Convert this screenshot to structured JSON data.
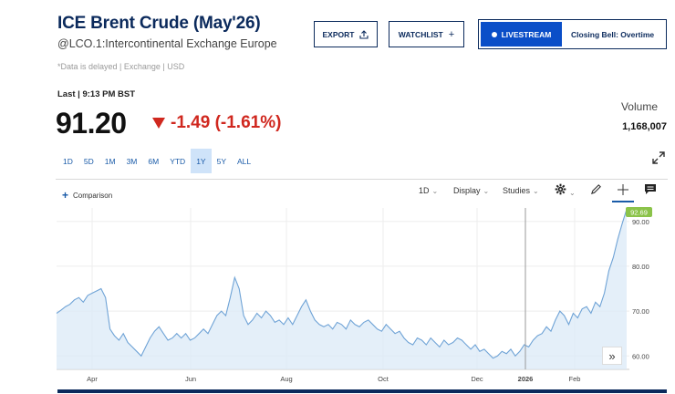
{
  "quote": {
    "title": "ICE Brent Crude (May'26)",
    "subtitle": "@LCO.1:Intercontinental Exchange Europe",
    "delayed_note": "*Data is delayed | Exchange | USD",
    "last_time": "Last | 9:13 PM BST",
    "price": "91.20",
    "change": "-1.49 (-1.61%)",
    "volume_label": "Volume",
    "volume_value": "1,168,007"
  },
  "header_buttons": {
    "export_label": "EXPORT",
    "watchlist_label": "WATCHLIST",
    "livestream_label": "LIVESTREAM",
    "live_show": "Closing Bell: Overtime"
  },
  "ranges": [
    "1D",
    "5D",
    "1M",
    "3M",
    "6M",
    "YTD",
    "1Y",
    "5Y",
    "ALL"
  ],
  "active_range": "1Y",
  "toolbar": {
    "comparison_label": "Comparison",
    "interval": "1D",
    "display": "Display",
    "studies": "Studies"
  },
  "colors": {
    "brand": "#0b2a5c",
    "negative": "#d0281f",
    "line": "#6fa3d6",
    "fill": "#dbe9f7",
    "badge": "#8bc34a"
  },
  "chart_data": {
    "type": "area",
    "x_labels": [
      "Apr",
      "Jun",
      "Aug",
      "Oct",
      "Dec",
      "2026",
      "Feb"
    ],
    "y_ticks": [
      "90.00",
      "80.00",
      "70.00",
      "60.00"
    ],
    "ylim": [
      57,
      93
    ],
    "last_value_badge": "92.69",
    "series": [
      {
        "values": [
          69.5,
          70.2,
          71.0,
          71.5,
          72.5,
          73.0,
          72.0,
          73.5,
          74.0,
          74.5,
          75.0,
          73.0,
          66.0,
          64.5,
          63.5,
          65.0,
          63.0,
          62.0,
          61.0,
          60.0,
          62.0,
          64.0,
          65.5,
          66.5,
          65.0,
          63.5,
          64.0,
          65.0,
          64.0,
          65.0,
          63.5,
          64.0,
          65.0,
          66.0,
          65.0,
          67.0,
          69.0,
          70.0,
          69.0,
          73.0,
          77.5,
          75.0,
          69.0,
          67.0,
          68.0,
          69.5,
          68.5,
          70.0,
          69.0,
          67.5,
          68.0,
          67.0,
          68.5,
          67.0,
          69.0,
          71.0,
          72.5,
          70.0,
          68.0,
          67.0,
          66.5,
          67.0,
          66.0,
          67.5,
          67.0,
          66.0,
          68.0,
          67.0,
          66.5,
          67.5,
          68.0,
          67.0,
          66.0,
          65.5,
          67.0,
          66.0,
          65.0,
          65.5,
          64.0,
          63.0,
          62.5,
          64.0,
          63.5,
          62.5,
          64.0,
          63.0,
          62.0,
          63.5,
          62.5,
          63.0,
          64.0,
          63.5,
          62.5,
          61.5,
          62.5,
          61.0,
          61.5,
          60.5,
          59.5,
          60.0,
          61.0,
          60.5,
          61.5,
          60.0,
          61.0,
          62.5,
          62.0,
          63.5,
          64.5,
          65.0,
          66.5,
          65.5,
          68.0,
          70.0,
          69.0,
          67.0,
          69.5,
          68.5,
          70.5,
          71.0,
          69.5,
          72.0,
          71.0,
          74.0,
          79.0,
          82.0,
          86.0,
          89.5,
          92.69
        ]
      }
    ]
  }
}
